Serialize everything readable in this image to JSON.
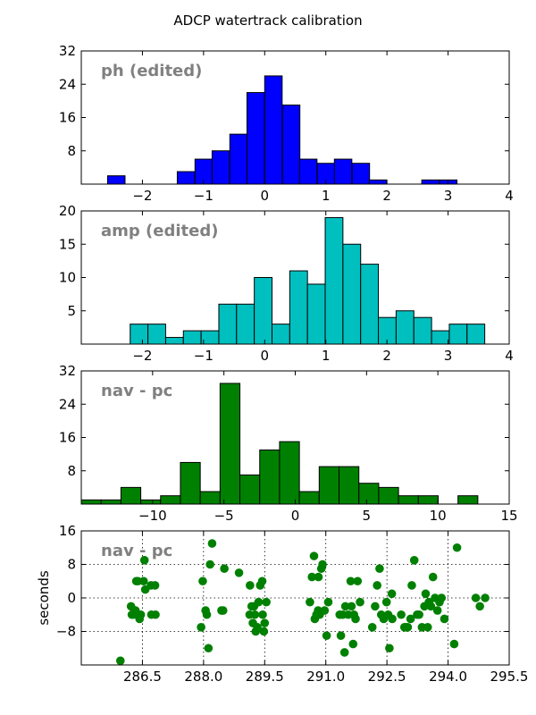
{
  "figure": {
    "title": "ADCP watertrack calibration"
  },
  "chart_data": [
    {
      "type": "bar",
      "label": "ph (edited)",
      "xlim": [
        -3,
        4
      ],
      "ylim": [
        0,
        32
      ],
      "xticks": [
        -2,
        -1,
        0,
        1,
        2,
        3,
        4
      ],
      "xtick_labels": [
        "−2",
        "−1",
        "0",
        "1",
        "2",
        "3",
        "4"
      ],
      "yticks": [
        8,
        16,
        24,
        32
      ],
      "ytick_labels": [
        "8",
        "16",
        "24",
        "32"
      ],
      "grid": false,
      "color": "#0000ff",
      "bin_width": 0.2857,
      "bin_starts": [
        -2.57,
        -2.29,
        -2.0,
        -1.71,
        -1.43,
        -1.14,
        -0.86,
        -0.57,
        -0.29,
        0.0,
        0.29,
        0.57,
        0.86,
        1.14,
        1.43,
        1.71,
        2.0,
        2.29,
        2.57,
        2.86
      ],
      "counts": [
        2,
        0,
        0,
        0,
        3,
        6,
        8,
        12,
        22,
        26,
        19,
        6,
        5,
        6,
        5,
        1,
        0,
        0,
        1,
        1
      ]
    },
    {
      "type": "bar",
      "label": "amp (edited)",
      "xlim": [
        -3,
        4
      ],
      "ylim": [
        0,
        20
      ],
      "xticks": [
        -2,
        -1,
        0,
        1,
        2,
        3,
        4
      ],
      "xtick_labels": [
        "−2",
        "−1",
        "0",
        "1",
        "2",
        "3",
        "4"
      ],
      "yticks": [
        5,
        10,
        15,
        20
      ],
      "ytick_labels": [
        "5",
        "10",
        "15",
        "20"
      ],
      "grid": false,
      "color": "#00bfbf",
      "bin_width": 0.29,
      "bin_starts": [
        -2.2,
        -1.91,
        -1.62,
        -1.33,
        -1.04,
        -0.75,
        -0.46,
        -0.17,
        0.12,
        0.41,
        0.7,
        0.99,
        1.28,
        1.57,
        1.86,
        2.15,
        2.44,
        2.73,
        3.02,
        3.31
      ],
      "counts": [
        3,
        3,
        1,
        2,
        2,
        6,
        6,
        10,
        3,
        11,
        9,
        19,
        15,
        12,
        4,
        5,
        4,
        2,
        3,
        3
      ]
    },
    {
      "type": "bar",
      "label": "nav - pc",
      "xlim": [
        -15,
        15
      ],
      "ylim": [
        0,
        32
      ],
      "xticks": [
        -10,
        -5,
        0,
        5,
        10,
        15
      ],
      "xtick_labels": [
        "−10",
        "−5",
        "0",
        "5",
        "10",
        "15"
      ],
      "yticks": [
        8,
        16,
        24,
        32
      ],
      "ytick_labels": [
        "8",
        "16",
        "24",
        "32"
      ],
      "grid": false,
      "color": "#008000",
      "bin_width": 1.39,
      "bin_starts": [
        -15.0,
        -13.61,
        -12.22,
        -10.83,
        -9.44,
        -8.05,
        -6.66,
        -5.27,
        -3.88,
        -2.49,
        -1.1,
        0.29,
        1.68,
        3.07,
        4.46,
        5.85,
        7.24,
        8.63,
        10.02,
        11.41
      ],
      "counts": [
        1,
        1,
        4,
        1,
        2,
        10,
        3,
        29,
        7,
        13,
        15,
        3,
        9,
        9,
        5,
        4,
        2,
        2,
        0,
        2
      ]
    },
    {
      "type": "scatter",
      "label": "nav - pc",
      "ylabel": "seconds",
      "xlim": [
        285.0,
        295.5
      ],
      "ylim": [
        -16,
        16
      ],
      "xticks": [
        286.5,
        288.0,
        289.5,
        291.0,
        292.5,
        294.0,
        295.5
      ],
      "xtick_labels": [
        "286.5",
        "288.0",
        "289.5",
        "291.0",
        "292.5",
        "294.0",
        "295.5"
      ],
      "yticks": [
        -8,
        0,
        8,
        16
      ],
      "ytick_labels": [
        "−8",
        "0",
        "8",
        "16"
      ],
      "grid": true,
      "color": "#008000",
      "x": [
        285.96,
        286.22,
        286.24,
        286.28,
        286.31,
        286.33,
        286.35,
        286.39,
        286.43,
        286.46,
        286.53,
        286.55,
        286.57,
        286.71,
        286.72,
        286.81,
        286.82,
        287.94,
        287.98,
        288.05,
        288.08,
        288.12,
        288.16,
        288.21,
        288.44,
        288.48,
        288.51,
        288.87,
        289.13,
        289.14,
        289.18,
        289.21,
        289.24,
        289.26,
        289.28,
        289.32,
        289.35,
        289.39,
        289.44,
        289.45,
        289.48,
        289.5,
        289.54,
        290.61,
        290.66,
        290.71,
        290.73,
        290.77,
        290.81,
        290.82,
        290.85,
        290.89,
        290.92,
        290.97,
        291.02,
        291.06,
        291.34,
        291.37,
        291.42,
        291.46,
        291.48,
        291.55,
        291.61,
        291.63,
        291.67,
        291.69,
        291.73,
        291.78,
        291.84,
        292.14,
        292.21,
        292.26,
        292.32,
        292.36,
        292.42,
        292.49,
        292.53,
        292.56,
        292.62,
        292.63,
        292.85,
        292.93,
        292.96,
        293.01,
        293.08,
        293.11,
        293.17,
        293.24,
        293.29,
        293.36,
        293.42,
        293.45,
        293.5,
        293.53,
        293.58,
        293.63,
        293.68,
        293.74,
        293.79,
        293.84,
        293.91,
        294.15,
        294.22,
        294.68,
        294.78,
        294.91
      ],
      "y": [
        -15,
        -2,
        -4,
        -4,
        -3,
        -3,
        4,
        4,
        -5,
        -4,
        4,
        9,
        2,
        3,
        -4,
        3,
        -4,
        -7,
        4,
        -3,
        -4,
        -12,
        8,
        13,
        -3,
        -3,
        7,
        6,
        -4,
        3,
        -2,
        -6,
        -2,
        -4,
        -8,
        -7,
        -1,
        3,
        4,
        -4,
        -8,
        -6,
        -1,
        -1,
        5,
        10,
        -5,
        -4,
        -3,
        5,
        -4,
        7,
        8,
        -3,
        -9,
        -1,
        -4,
        -9,
        -4,
        -13,
        -2,
        -4,
        4,
        -2,
        -11,
        -4,
        -5,
        4,
        -1,
        -7,
        -2,
        3,
        7,
        -4,
        -5,
        -1,
        -4,
        -12,
        1,
        -5,
        -4,
        -7,
        -7,
        -7,
        -5,
        3,
        9,
        -4,
        -4,
        -7,
        -2,
        1,
        -7,
        -1,
        -2,
        5,
        0,
        -3,
        -1,
        0,
        -5,
        -11,
        12,
        0,
        -2,
        0
      ]
    }
  ]
}
